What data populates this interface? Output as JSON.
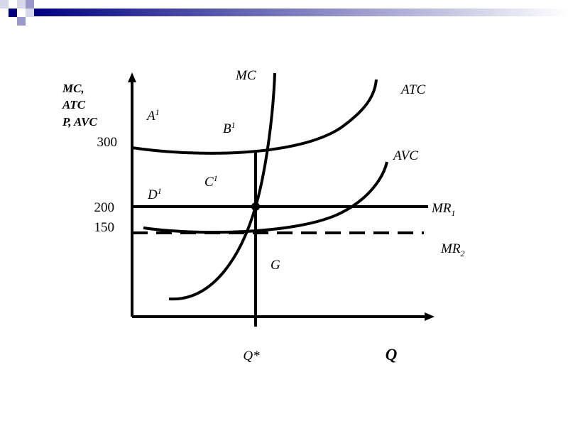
{
  "y_axis_label": [
    "MC,",
    "ATC",
    "P, AVC"
  ],
  "y_values": [
    "300",
    "200",
    "150"
  ],
  "curves": {
    "mc": "MC",
    "atc": "ATC",
    "avc": "AVC"
  },
  "points": [
    {
      "text": "A",
      "sup": "1"
    },
    {
      "text": "B",
      "sup": "1"
    },
    {
      "text": "C",
      "sup": "1"
    },
    {
      "text": "D",
      "sup": "1"
    },
    {
      "text": "G"
    }
  ],
  "revenue_lines": [
    {
      "text": "MR",
      "sub": "1"
    },
    {
      "text": "MR",
      "sub": "2"
    }
  ],
  "x_labels": {
    "q_star": "Q*",
    "q": "Q"
  }
}
